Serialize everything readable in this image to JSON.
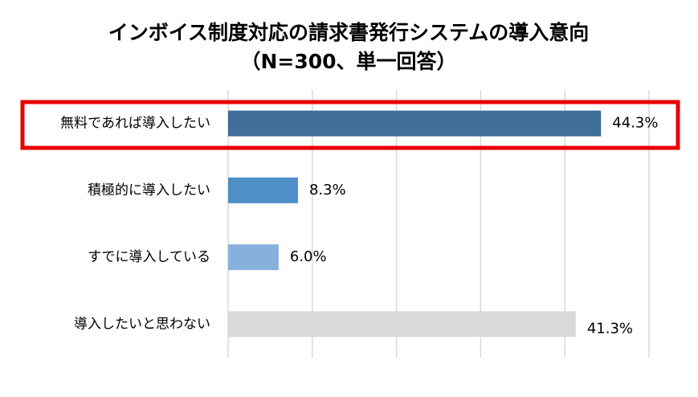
{
  "chart_data": {
    "type": "hbar",
    "title": "インボイス制度対応の請求書発行システムの導入意向",
    "subtitle": "（N=300、単一回答）",
    "categories": [
      "無料であれば導入したい",
      "積極的に導入したい",
      "すでに導入している",
      "導入したいと思わない"
    ],
    "values": [
      44.3,
      8.3,
      6.0,
      41.3
    ],
    "value_labels": [
      "44.3%",
      "8.3%",
      "6.0%",
      "41.3%"
    ],
    "colors": [
      "#3f6e99",
      "#4f8fc8",
      "#87b0dd",
      "#d9d9d9"
    ],
    "xlim": [
      0,
      50
    ],
    "xticks": [
      0,
      10,
      20,
      30,
      40,
      50
    ],
    "grid": true
  }
}
